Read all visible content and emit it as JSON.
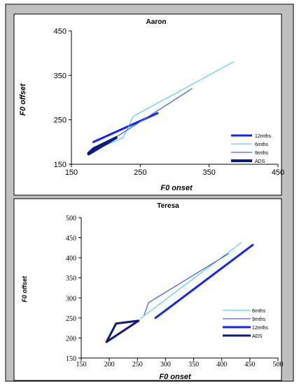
{
  "chart_data": [
    {
      "type": "line",
      "title": "Aaron",
      "xlabel_prefix": "F0",
      "xlabel_suffix": " onset",
      "ylabel_prefix": "F0",
      "ylabel_suffix": " offset",
      "xlim": [
        150,
        450
      ],
      "ylim": [
        150,
        450
      ],
      "xticks": [
        150,
        250,
        350,
        450
      ],
      "yticks": [
        150,
        250,
        350,
        450
      ],
      "legend_position": "bottom-right",
      "series": [
        {
          "name": "12mths",
          "color": "#1428e6",
          "width": 3,
          "points": [
            [
              182,
              200
            ],
            [
              275,
              265
            ]
          ]
        },
        {
          "name": "6mths",
          "color": "#33c4ee",
          "width": 1,
          "points": [
            [
              178,
              178
            ],
            [
              225,
              210
            ],
            [
              240,
              258
            ],
            [
              385,
              380
            ]
          ]
        },
        {
          "name": "9mths",
          "color": "#4466e0",
          "width": 1.3,
          "points": [
            [
              180,
              180
            ],
            [
              222,
              218
            ],
            [
              325,
              320
            ]
          ]
        },
        {
          "name": "ADS",
          "color": "#0d1a7a",
          "width": 4,
          "points": [
            [
              175,
              173
            ],
            [
              215,
              210
            ],
            [
              182,
              185
            ],
            [
              175,
              175
            ]
          ]
        }
      ]
    },
    {
      "type": "line",
      "title": "Teresa",
      "xlabel_prefix": "F0",
      "xlabel_suffix": " onset",
      "ylabel_prefix": "F0",
      "ylabel_suffix": " offset",
      "xlim": [
        150,
        500
      ],
      "ylim": [
        150,
        500
      ],
      "xticks": [
        150,
        200,
        250,
        300,
        350,
        400,
        450,
        500
      ],
      "yticks": [
        150,
        200,
        250,
        300,
        350,
        400,
        450,
        500
      ],
      "legend_position": "bottom-right",
      "series": [
        {
          "name": "6mths",
          "color": "#33c4ee",
          "width": 1,
          "points": [
            [
              255,
              248
            ],
            [
              435,
              438
            ]
          ]
        },
        {
          "name": "9mths",
          "color": "#4466e0",
          "width": 1.3,
          "points": [
            [
              262,
              258
            ],
            [
              270,
              288
            ],
            [
              412,
              410
            ]
          ]
        },
        {
          "name": "12mths",
          "color": "#1428e6",
          "width": 3,
          "points": [
            [
              282,
              250
            ],
            [
              455,
              432
            ]
          ]
        },
        {
          "name": "ADS",
          "color": "#0d1a7a",
          "width": 3,
          "points": [
            [
              195,
              190
            ],
            [
              212,
              236
            ],
            [
              252,
              243
            ],
            [
              195,
              190
            ]
          ]
        }
      ]
    }
  ]
}
